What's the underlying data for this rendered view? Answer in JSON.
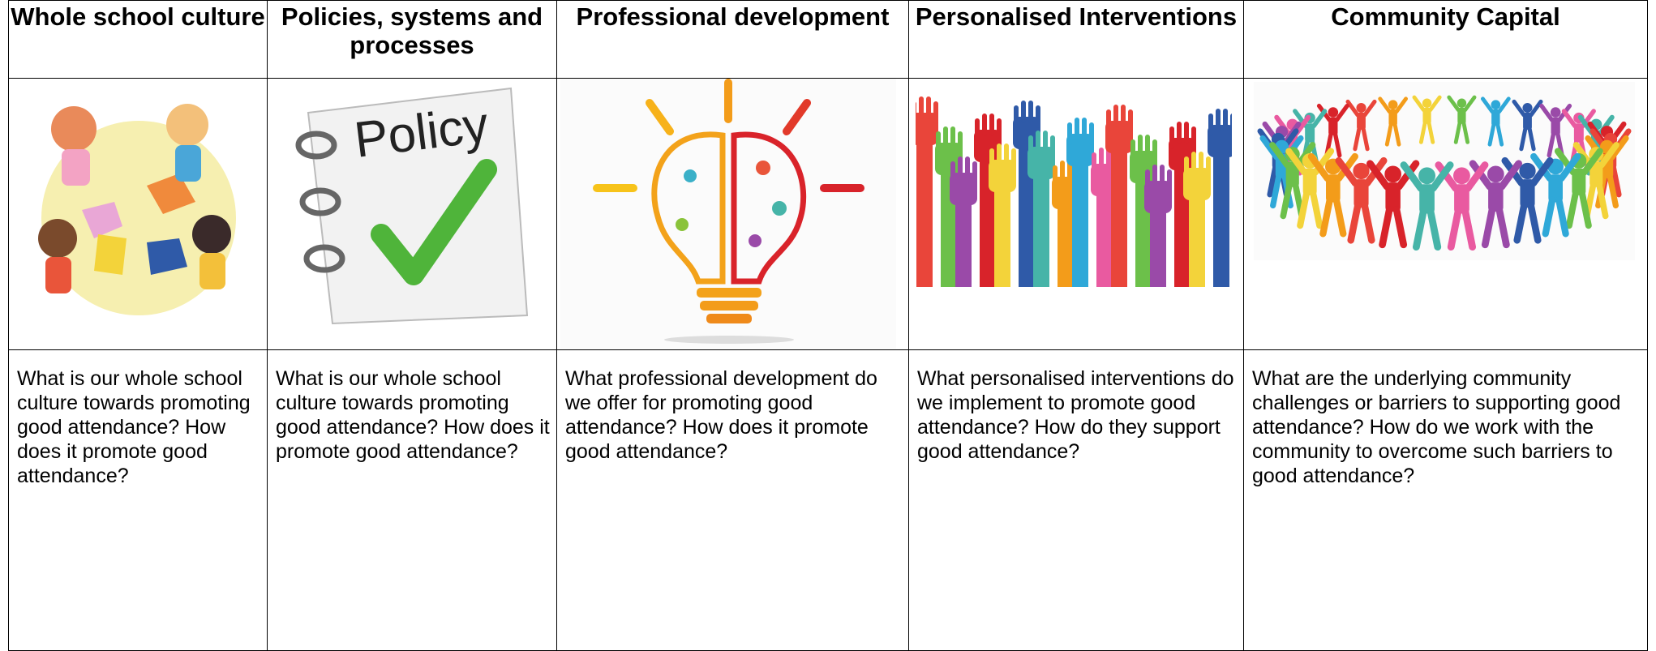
{
  "columns": [
    {
      "header": "Whole school culture",
      "text": "What is our whole school culture towards promoting good attendance? How does it promote good attendance?"
    },
    {
      "header": "Policies, systems and processes",
      "text": "What is our whole school culture towards promoting good attendance? How does it promote good attendance?"
    },
    {
      "header": "Professional development",
      "text": "What professional development do we offer for promoting good attendance? How does it promote good attendance?"
    },
    {
      "header": "Personalised Interventions",
      "text": "What personalised interventions do we implement to promote good attendance? How do they support good attendance?"
    },
    {
      "header": "Community Capital",
      "text": "What are the underlying community challenges or barriers to supporting good attendance? How do we work with the community to overcome such barriers to good attendance?"
    }
  ],
  "policy_image_label": "Policy"
}
